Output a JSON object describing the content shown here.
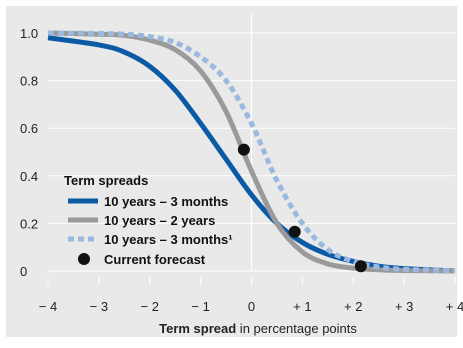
{
  "chart_data": {
    "type": "line",
    "title": "",
    "xlabel_bold": "Term spread",
    "xlabel_rest": " in percentage points",
    "ylabel": "",
    "xlim": [
      -4,
      4
    ],
    "ylim": [
      0,
      1.0
    ],
    "x_ticks": [
      -4,
      -3,
      -2,
      -1,
      0,
      1,
      2,
      3,
      4
    ],
    "x_tick_labels": [
      "− 4",
      "− 3",
      "− 2",
      "− 1",
      "0",
      "+ 1",
      "+ 2",
      "+ 3",
      "+ 4"
    ],
    "y_ticks": [
      0,
      0.2,
      0.4,
      0.6,
      0.8,
      1.0
    ],
    "y_tick_labels": [
      "0",
      "0.2",
      "0.4",
      "0.6",
      "0.8",
      "1.0"
    ],
    "grid": "horizontal",
    "zero_line": true,
    "legend": {
      "title": "Term spreads",
      "placement": "lower-left"
    },
    "series": [
      {
        "name": "10 years – 3 months",
        "color": "#0a5aa5",
        "style": "solid",
        "x": [
          -4,
          -3,
          -2.5,
          -2,
          -1.5,
          -1,
          -0.5,
          0,
          0.5,
          1,
          1.5,
          2,
          2.5,
          3,
          4
        ],
        "y": [
          0.98,
          0.95,
          0.92,
          0.86,
          0.76,
          0.62,
          0.47,
          0.32,
          0.2,
          0.12,
          0.07,
          0.04,
          0.02,
          0.01,
          0.0
        ]
      },
      {
        "name": "10 years – 2 years",
        "color": "#9a9a9a",
        "style": "solid",
        "x": [
          -4,
          -3,
          -2.5,
          -2,
          -1.5,
          -1,
          -0.5,
          0,
          0.5,
          1,
          1.5,
          2,
          2.5,
          3,
          4
        ],
        "y": [
          1.0,
          0.995,
          0.99,
          0.97,
          0.93,
          0.84,
          0.67,
          0.42,
          0.2,
          0.08,
          0.03,
          0.012,
          0.005,
          0.002,
          0.0
        ]
      },
      {
        "name": "10 years – 3 months¹",
        "color": "#9bb8e0",
        "style": "dashed",
        "x": [
          -4,
          -3,
          -2.5,
          -2,
          -1.5,
          -1,
          -0.5,
          0,
          0.5,
          1,
          1.5,
          2,
          2.5,
          3,
          4
        ],
        "y": [
          1.0,
          0.998,
          0.995,
          0.985,
          0.96,
          0.9,
          0.8,
          0.62,
          0.38,
          0.2,
          0.09,
          0.04,
          0.017,
          0.007,
          0.001
        ]
      }
    ],
    "points": {
      "name": "Current forecast",
      "color": "#111111",
      "x": [
        -0.15,
        0.85,
        2.15
      ],
      "y": [
        0.51,
        0.165,
        0.02
      ]
    }
  }
}
